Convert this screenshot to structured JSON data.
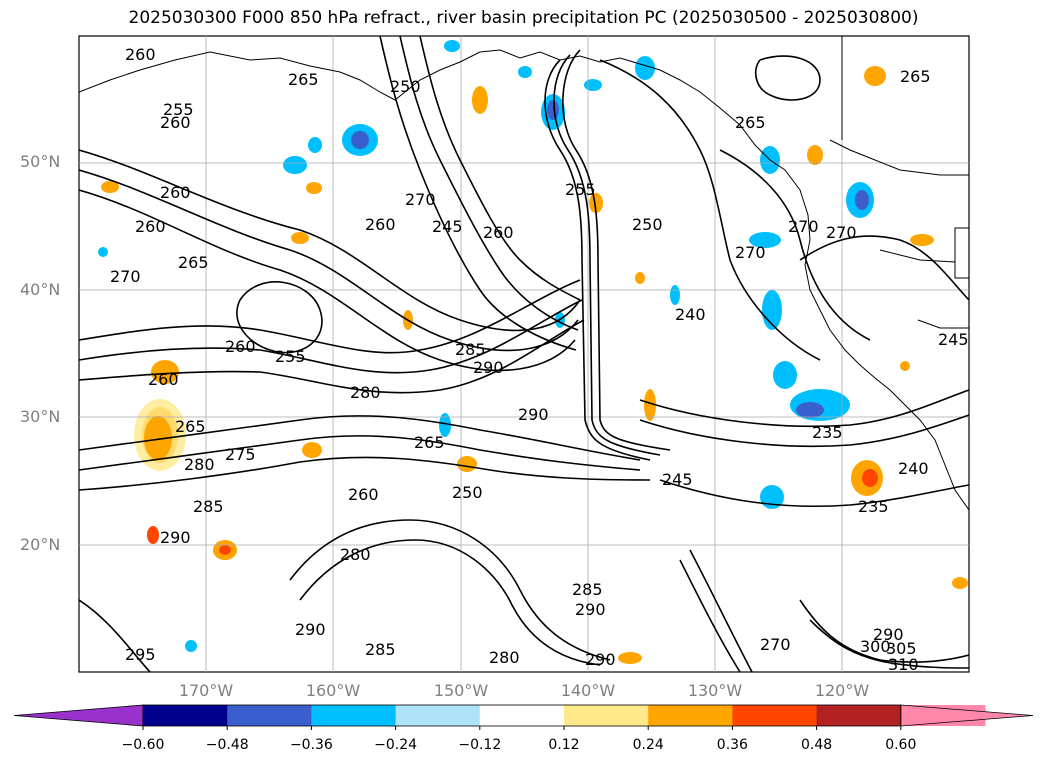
{
  "title": "2025030300 F000 850 hPa refract., river basin precipitation PC (2025030500 - 2025030800)",
  "lat_labels": [
    "50°N",
    "40°N",
    "30°N",
    "20°N"
  ],
  "lon_labels": [
    "170°W",
    "160°W",
    "150°W",
    "140°W",
    "130°W",
    "120°W"
  ],
  "colorbar": {
    "ticks": [
      "−0.60",
      "−0.48",
      "−0.36",
      "−0.24",
      "−0.12",
      "0.12",
      "0.24",
      "0.36",
      "0.48",
      "0.60"
    ],
    "colors": [
      "#9932cc",
      "#00008b",
      "#3a5fcd",
      "#00bfff",
      "#afe3fa",
      "#ffffff",
      "#ffe98a",
      "#ffa500",
      "#ff4500",
      "#b22222",
      "#ff88aa",
      "#ff88aa"
    ]
  },
  "contour_labels": [
    "260",
    "265",
    "250",
    "255",
    "260",
    "260",
    "260",
    "265",
    "270",
    "260",
    "270",
    "260",
    "255",
    "260",
    "265",
    "280",
    "290",
    "285",
    "290",
    "265",
    "280",
    "275",
    "260",
    "250",
    "245",
    "255",
    "260",
    "250",
    "245",
    "240",
    "235",
    "240",
    "235",
    "270",
    "270",
    "270",
    "265",
    "265",
    "245",
    "285",
    "290",
    "290",
    "280",
    "295",
    "290",
    "280",
    "285",
    "290",
    "300",
    "305",
    "310",
    "270",
    "285",
    "290"
  ]
}
